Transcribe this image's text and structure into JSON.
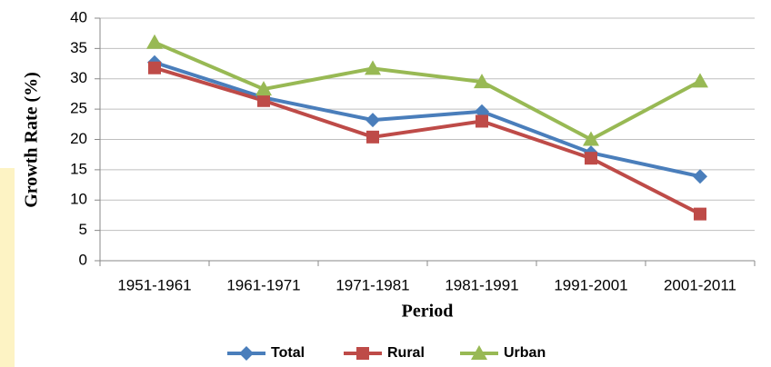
{
  "chart_data": {
    "type": "line",
    "x_label": "Period",
    "y_label": "Growth Rate (%)",
    "categories": [
      "1951-1961",
      "1961-1971",
      "1971-1981",
      "1981-1991",
      "1991-2001",
      "2001-2011"
    ],
    "series": [
      {
        "name": "Total",
        "color": "#4a7ebb",
        "marker": "diamond",
        "values": [
          32.7,
          26.9,
          23.2,
          24.6,
          17.8,
          13.9
        ]
      },
      {
        "name": "Rural",
        "color": "#be4b48",
        "marker": "square",
        "values": [
          31.8,
          26.4,
          20.4,
          23.0,
          16.9,
          7.7
        ]
      },
      {
        "name": "Urban",
        "color": "#98b954",
        "marker": "triangle",
        "values": [
          36.0,
          28.3,
          31.7,
          29.5,
          20.0,
          29.6
        ]
      }
    ],
    "ylim": [
      0,
      40
    ],
    "yticks": [
      0,
      5,
      10,
      15,
      20,
      25,
      30,
      35,
      40
    ],
    "grid": true,
    "legend": "bottom"
  }
}
